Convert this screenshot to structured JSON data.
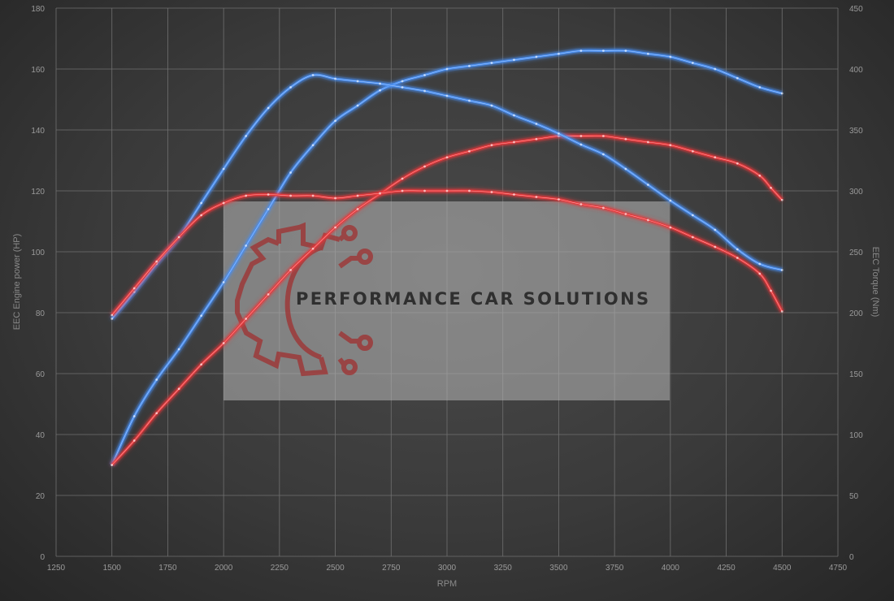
{
  "chart_data": {
    "type": "line",
    "xlabel": "RPM",
    "ylabel": "EEC Engine power (HP)",
    "y2label": "EEC Torque (Nm)",
    "xlim": [
      1250,
      4750
    ],
    "xticks": [
      1250,
      1500,
      1750,
      2000,
      2250,
      2500,
      2750,
      3000,
      3250,
      3500,
      3750,
      4000,
      4250,
      4500,
      4750
    ],
    "ylim": [
      0,
      180
    ],
    "yticks": [
      0,
      20,
      40,
      60,
      80,
      100,
      120,
      140,
      160,
      180
    ],
    "y2lim": [
      0,
      450
    ],
    "y2ticks": [
      0,
      50,
      100,
      150,
      200,
      250,
      300,
      350,
      400,
      450
    ],
    "grid": true,
    "watermark": "PERFORMANCE CAR SOLUTIONS",
    "series": [
      {
        "color": "#4a8ef0",
        "axis": "left",
        "x": [
          1500,
          1600,
          1700,
          1800,
          1900,
          2000,
          2100,
          2200,
          2300,
          2400,
          2500,
          2600,
          2700,
          2800,
          2900,
          3000,
          3100,
          3200,
          3300,
          3400,
          3500,
          3600,
          3700,
          3800,
          3900,
          4000,
          4100,
          4200,
          4300,
          4400,
          4500
        ],
        "values": [
          30,
          46,
          58,
          68,
          79,
          90,
          102,
          114,
          126,
          135,
          143,
          148,
          153,
          156,
          158,
          160,
          161,
          162,
          163,
          164,
          165,
          166,
          166,
          166,
          165,
          164,
          162,
          160,
          157,
          154,
          152
        ]
      },
      {
        "color": "#e8383a",
        "axis": "left",
        "x": [
          1500,
          1600,
          1700,
          1800,
          1900,
          2000,
          2100,
          2200,
          2300,
          2400,
          2500,
          2600,
          2700,
          2800,
          2900,
          3000,
          3100,
          3200,
          3300,
          3400,
          3500,
          3600,
          3700,
          3800,
          3900,
          4000,
          4100,
          4200,
          4300,
          4400,
          4450,
          4500
        ],
        "values": [
          30,
          38,
          47,
          55,
          63,
          70,
          78,
          86,
          94,
          101,
          108,
          114,
          119,
          124,
          128,
          131,
          133,
          135,
          136,
          137,
          138,
          138,
          138,
          137,
          136,
          135,
          133,
          131,
          129,
          125,
          121,
          117
        ]
      },
      {
        "color": "#4a8ef0",
        "axis": "right",
        "x": [
          1500,
          1600,
          1700,
          1800,
          1900,
          2000,
          2100,
          2200,
          2300,
          2400,
          2500,
          2600,
          2700,
          2800,
          2900,
          3000,
          3100,
          3200,
          3300,
          3400,
          3500,
          3600,
          3700,
          3800,
          3900,
          4000,
          4100,
          4200,
          4300,
          4400,
          4500
        ],
        "values": [
          195,
          217,
          240,
          262,
          290,
          318,
          345,
          368,
          385,
          395,
          392,
          390,
          388,
          385,
          382,
          378,
          374,
          370,
          362,
          355,
          347,
          338,
          330,
          318,
          305,
          292,
          280,
          268,
          252,
          240,
          235
        ]
      },
      {
        "color": "#e8383a",
        "axis": "right",
        "x": [
          1500,
          1600,
          1700,
          1800,
          1900,
          2000,
          2100,
          2200,
          2300,
          2400,
          2500,
          2600,
          2700,
          2800,
          2900,
          3000,
          3100,
          3200,
          3300,
          3400,
          3500,
          3600,
          3700,
          3800,
          3900,
          4000,
          4100,
          4200,
          4300,
          4400,
          4450,
          4500
        ],
        "values": [
          198,
          220,
          242,
          262,
          280,
          290,
          296,
          297,
          296,
          296,
          294,
          296,
          298,
          300,
          300,
          300,
          300,
          299,
          297,
          295,
          293,
          289,
          286,
          281,
          276,
          270,
          262,
          254,
          245,
          232,
          218,
          201
        ]
      }
    ]
  }
}
